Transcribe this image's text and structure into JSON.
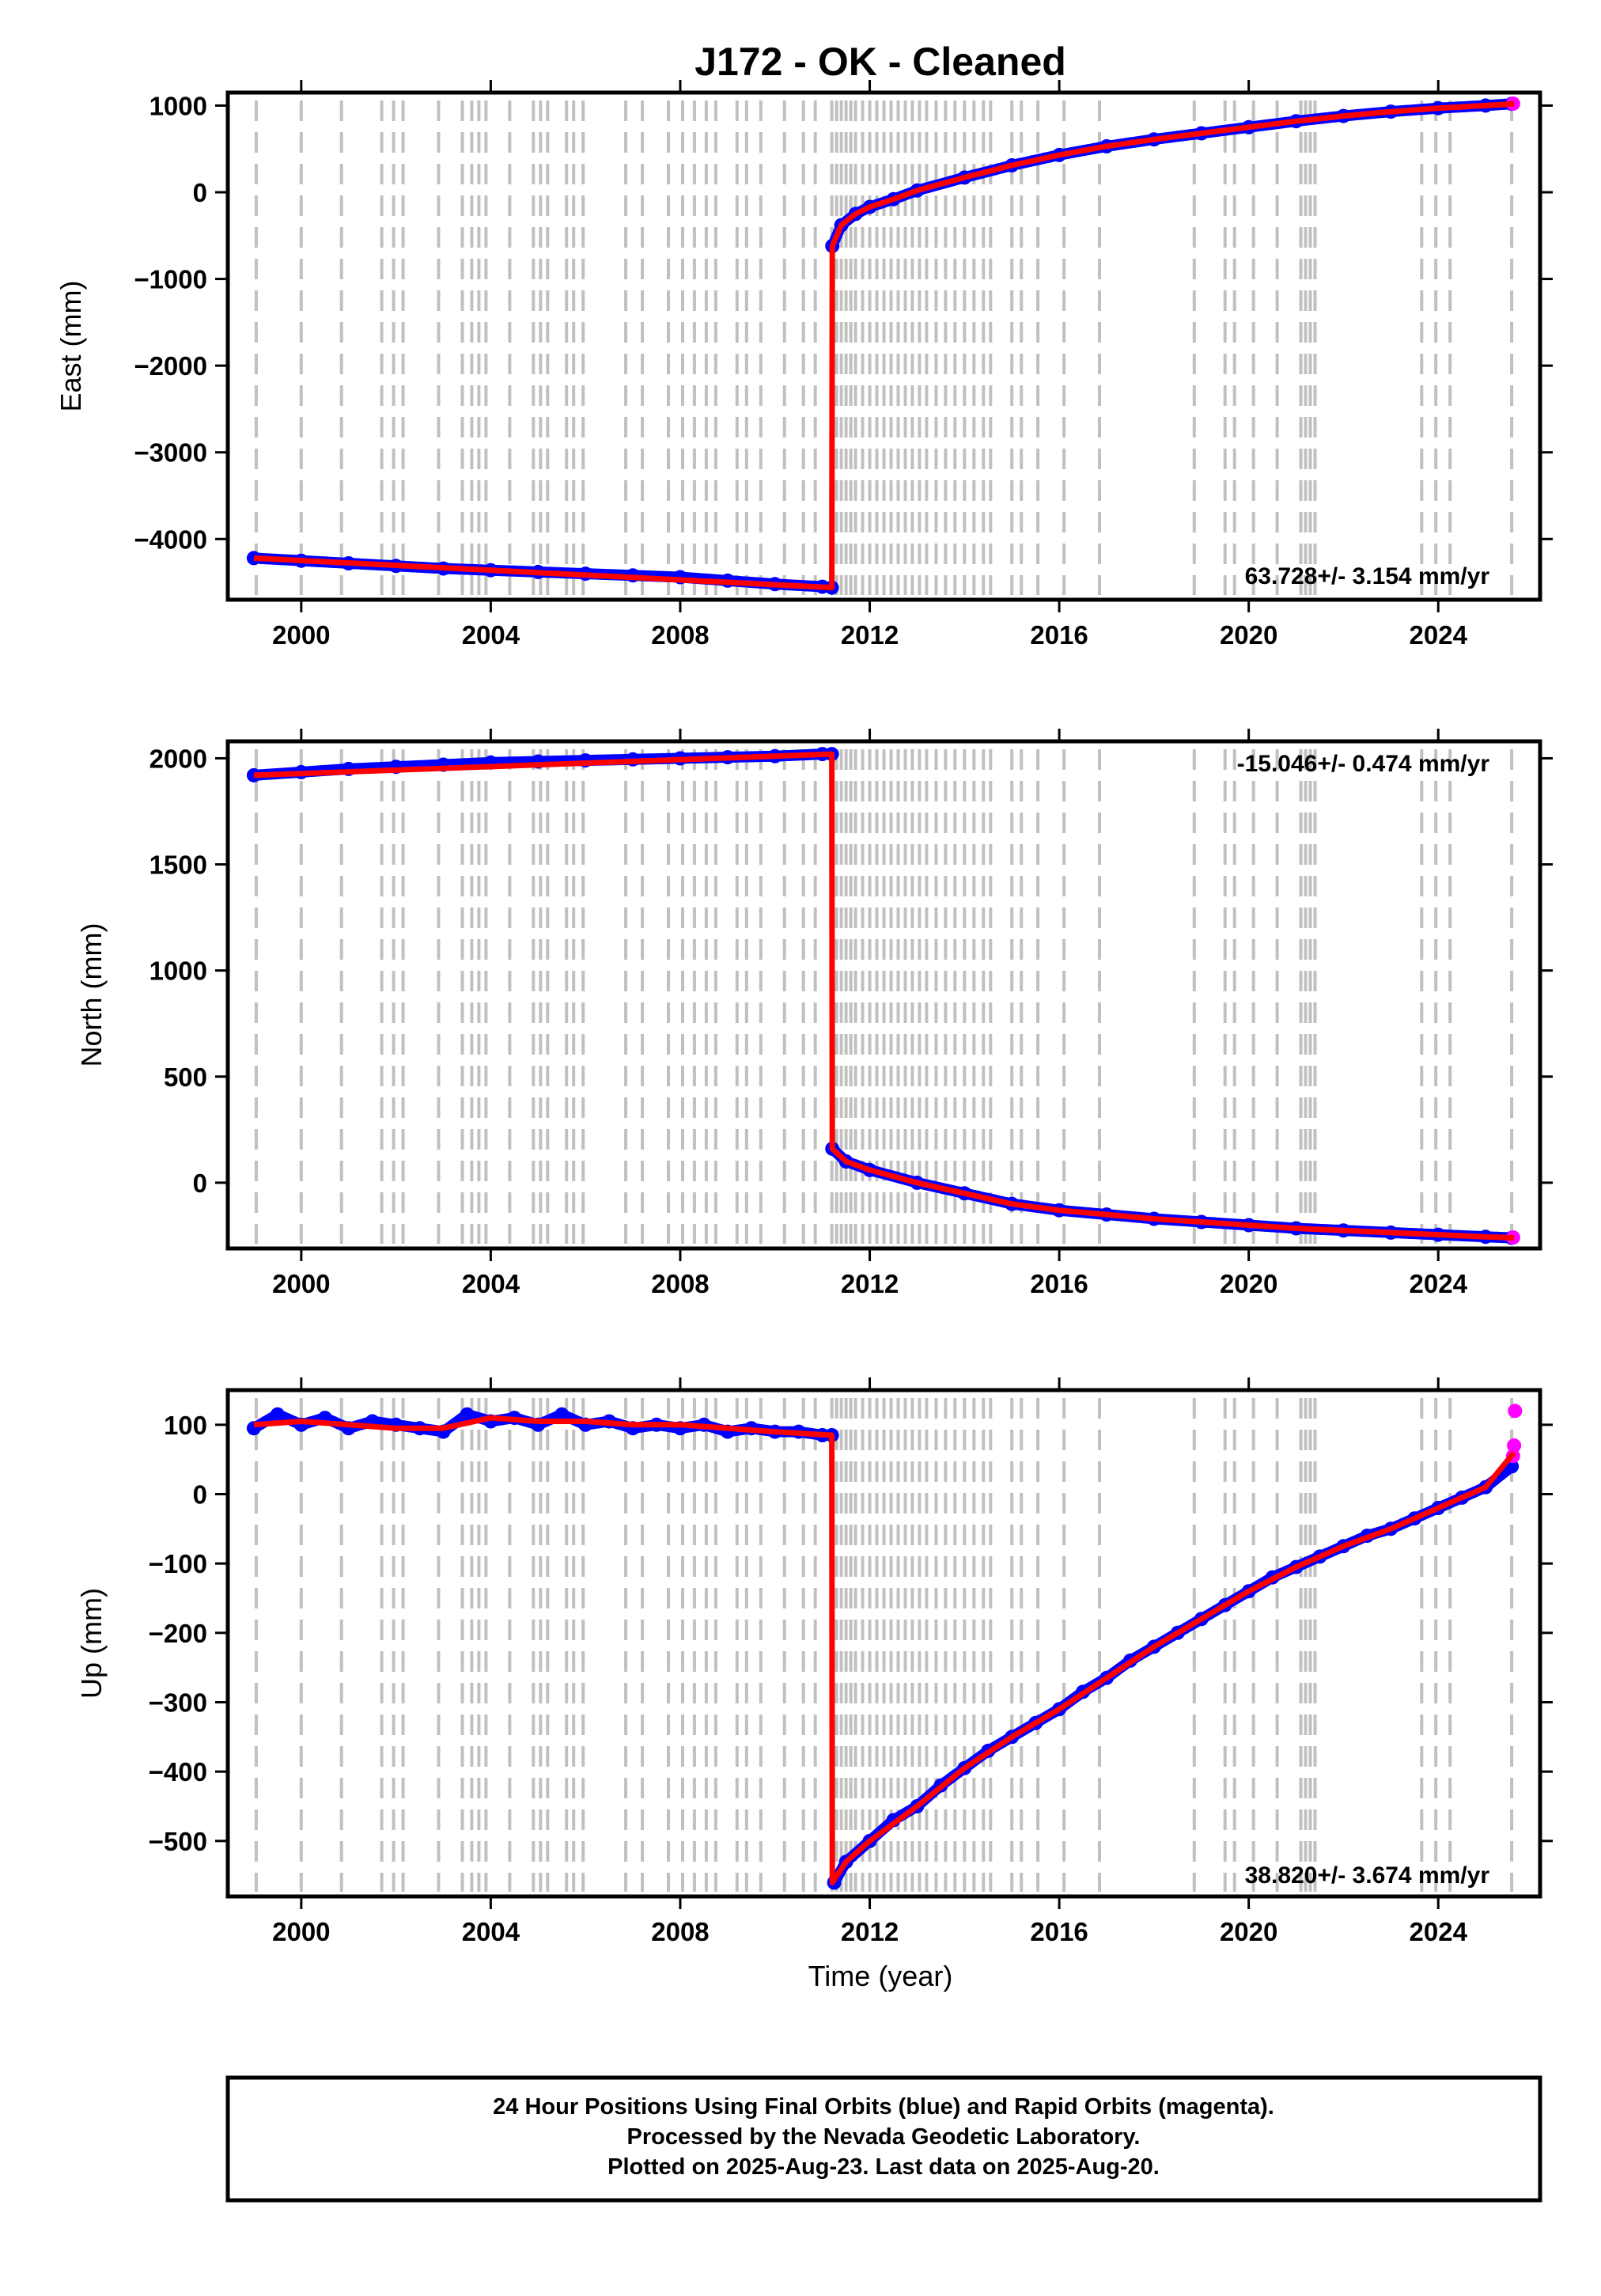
{
  "title": "J172  - OK - Cleaned",
  "xlabel": "Time (year)",
  "footer": {
    "line1": "24 Hour Positions Using Final Orbits (blue) and Rapid Orbits (magenta).",
    "line2": "Processed by the Nevada Geodetic Laboratory.",
    "line3": "Plotted on 2025-Aug-23. Last data on 2025-Aug-20."
  },
  "colors": {
    "final_orbits": "#0000ff",
    "rapid_orbits": "#ff00ff",
    "model": "#ff0000",
    "event_lines": "#c0c0c0"
  },
  "chart_data": [
    {
      "type": "scatter",
      "component": "east",
      "ylabel": "East (mm)",
      "rate_text": "63.728+/- 3.154 mm/yr",
      "xlim": [
        1998.45,
        2026.15
      ],
      "ylim": [
        -4700,
        1150
      ],
      "x_ticks": [
        2000,
        2004,
        2008,
        2012,
        2016,
        2020,
        2024
      ],
      "y_ticks": [
        -4000,
        -3000,
        -2000,
        -1000,
        0,
        1000
      ],
      "y_tick_labels": [
        "−4000",
        "−3000",
        "−2000",
        "−1000",
        "0",
        "1000"
      ],
      "series": [
        {
          "color": "#0000ff",
          "x": [
            1999.0,
            2000.0,
            2001.0,
            2002.0,
            2003.0,
            2004.0,
            2005.0,
            2006.0,
            2007.0,
            2008.0,
            2009.0,
            2010.0,
            2011.0,
            2011.2,
            2011.21,
            2011.4,
            2011.7,
            2012.0,
            2012.5,
            2013.0,
            2014.0,
            2015.0,
            2016.0,
            2017.0,
            2018.0,
            2019.0,
            2020.0,
            2021.0,
            2022.0,
            2023.0,
            2024.0,
            2025.0,
            2025.55
          ],
          "y": [
            -4220,
            -4250,
            -4280,
            -4310,
            -4340,
            -4360,
            -4380,
            -4400,
            -4420,
            -4440,
            -4480,
            -4520,
            -4550,
            -4560,
            -620,
            -380,
            -250,
            -170,
            -80,
            20,
            170,
            310,
            430,
            530,
            610,
            680,
            750,
            820,
            880,
            930,
            970,
            1000,
            1020
          ]
        },
        {
          "color": "#ff00ff",
          "x": [
            2025.58
          ],
          "y": [
            1022
          ]
        }
      ],
      "model_line": {
        "x": [
          1999.0,
          2011.2,
          2011.21,
          2011.4,
          2011.7,
          2012.0,
          2012.5,
          2013.0,
          2014.0,
          2015.0,
          2016.0,
          2017.0,
          2018.0,
          2019.0,
          2020.0,
          2021.0,
          2022.0,
          2023.0,
          2024.0,
          2025.0,
          2025.6
        ],
        "y": [
          -4220,
          -4560,
          -620,
          -380,
          -250,
          -170,
          -80,
          20,
          170,
          310,
          430,
          530,
          610,
          680,
          750,
          820,
          880,
          930,
          970,
          1000,
          1020
        ]
      }
    },
    {
      "type": "scatter",
      "component": "north",
      "ylabel": "North (mm)",
      "rate_text": "-15.046+/- 0.474 mm/yr",
      "xlim": [
        1998.45,
        2026.15
      ],
      "ylim": [
        -310,
        2080
      ],
      "x_ticks": [
        2000,
        2004,
        2008,
        2012,
        2016,
        2020,
        2024
      ],
      "y_ticks": [
        0,
        500,
        1000,
        1500,
        2000
      ],
      "y_tick_labels": [
        "0",
        "500",
        "1000",
        "1500",
        "2000"
      ],
      "series": [
        {
          "color": "#0000ff",
          "x": [
            1999.0,
            2000.0,
            2001.0,
            2002.0,
            2003.0,
            2004.0,
            2005.0,
            2006.0,
            2007.0,
            2008.0,
            2009.0,
            2010.0,
            2011.0,
            2011.2,
            2011.21,
            2011.5,
            2012.0,
            2013.0,
            2014.0,
            2015.0,
            2016.0,
            2017.0,
            2018.0,
            2019.0,
            2020.0,
            2021.0,
            2022.0,
            2023.0,
            2024.0,
            2025.0,
            2025.55
          ],
          "y": [
            1920,
            1935,
            1950,
            1960,
            1970,
            1980,
            1985,
            1990,
            1995,
            2000,
            2005,
            2010,
            2020,
            2020,
            160,
            100,
            60,
            0,
            -50,
            -100,
            -130,
            -150,
            -170,
            -185,
            -200,
            -215,
            -225,
            -235,
            -245,
            -255,
            -260
          ]
        },
        {
          "color": "#ff00ff",
          "x": [
            2025.58
          ],
          "y": [
            -258
          ]
        }
      ],
      "model_line": {
        "x": [
          1999.0,
          2011.2,
          2011.21,
          2011.5,
          2012.0,
          2013.0,
          2014.0,
          2015.0,
          2016.0,
          2017.0,
          2018.0,
          2019.0,
          2020.0,
          2021.0,
          2022.0,
          2023.0,
          2024.0,
          2025.0,
          2025.6
        ],
        "y": [
          1920,
          2020,
          160,
          100,
          60,
          0,
          -50,
          -100,
          -130,
          -150,
          -170,
          -185,
          -200,
          -215,
          -225,
          -235,
          -245,
          -255,
          -260
        ]
      }
    },
    {
      "type": "scatter",
      "component": "up",
      "ylabel": "Up (mm)",
      "rate_text": "38.820+/- 3.674 mm/yr",
      "xlim": [
        1998.45,
        2026.15
      ],
      "ylim": [
        -580,
        150
      ],
      "x_ticks": [
        2000,
        2004,
        2008,
        2012,
        2016,
        2020,
        2024
      ],
      "y_ticks": [
        -500,
        -400,
        -300,
        -200,
        -100,
        0,
        100
      ],
      "y_tick_labels": [
        "−500",
        "−400",
        "−300",
        "−200",
        "−100",
        "0",
        "100"
      ],
      "series": [
        {
          "color": "#0000ff",
          "x": [
            1999.0,
            1999.5,
            2000.0,
            2000.5,
            2001.0,
            2001.5,
            2002.0,
            2002.5,
            2003.0,
            2003.5,
            2004.0,
            2004.5,
            2005.0,
            2005.5,
            2006.0,
            2006.5,
            2007.0,
            2007.5,
            2008.0,
            2008.5,
            2009.0,
            2009.5,
            2010.0,
            2010.5,
            2011.0,
            2011.2,
            2011.25,
            2011.5,
            2012.0,
            2012.5,
            2013.0,
            2013.5,
            2014.0,
            2014.5,
            2015.0,
            2015.5,
            2016.0,
            2016.5,
            2017.0,
            2017.5,
            2018.0,
            2018.5,
            2019.0,
            2019.5,
            2020.0,
            2020.5,
            2021.0,
            2021.5,
            2022.0,
            2022.5,
            2023.0,
            2023.5,
            2024.0,
            2024.5,
            2025.0,
            2025.55
          ],
          "y": [
            95,
            115,
            100,
            110,
            95,
            105,
            100,
            95,
            90,
            115,
            105,
            110,
            100,
            115,
            100,
            105,
            95,
            100,
            95,
            100,
            90,
            95,
            90,
            90,
            85,
            85,
            -560,
            -530,
            -500,
            -470,
            -450,
            -420,
            -395,
            -370,
            -350,
            -330,
            -310,
            -285,
            -265,
            -240,
            -220,
            -200,
            -180,
            -160,
            -140,
            -120,
            -105,
            -90,
            -75,
            -60,
            -50,
            -35,
            -20,
            -5,
            10,
            40
          ]
        },
        {
          "color": "#ff00ff",
          "x": [
            2025.58,
            2025.6,
            2025.62
          ],
          "y": [
            55,
            70,
            120
          ]
        }
      ],
      "model_line": {
        "x": [
          1999.0,
          2000.0,
          2001.0,
          2002.0,
          2003.0,
          2004.0,
          2005.0,
          2006.0,
          2007.0,
          2008.0,
          2009.0,
          2010.0,
          2011.2,
          2011.21,
          2011.5,
          2012.0,
          2013.0,
          2014.0,
          2015.0,
          2016.0,
          2017.0,
          2018.0,
          2019.0,
          2020.0,
          2021.0,
          2022.0,
          2023.0,
          2024.0,
          2025.0,
          2025.6
        ],
        "y": [
          100,
          105,
          100,
          95,
          95,
          110,
          105,
          105,
          100,
          100,
          95,
          90,
          85,
          -560,
          -530,
          -500,
          -450,
          -395,
          -350,
          -310,
          -265,
          -220,
          -180,
          -140,
          -105,
          -75,
          -50,
          -20,
          10,
          60
        ]
      }
    }
  ]
}
